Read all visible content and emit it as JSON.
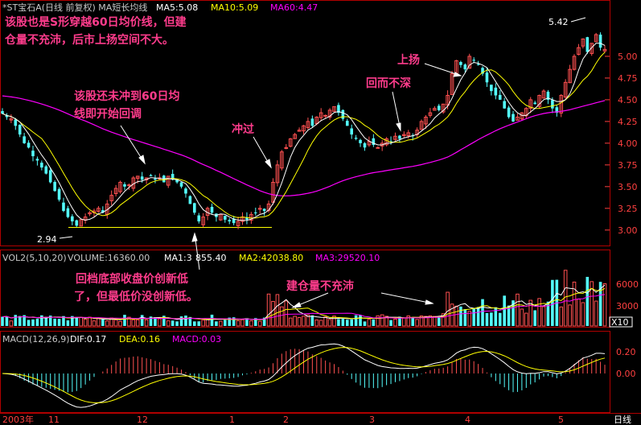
{
  "header": {
    "title": "*ST宝石A(日线 前复权) MA短长均线",
    "ma5": "MA5:5.08",
    "ma10": "MA10:5.09",
    "ma60": "MA60:4.47"
  },
  "annotations": {
    "top_left_1": "该股也是S形穿越60日均价线，但建",
    "top_left_2": "仓量不充沛，后市上扬空间不大。",
    "mid_1": "该股还未冲到60日均",
    "mid_2": "线即开始回调",
    "chongguo": "冲过",
    "huiliang": "回而不深",
    "shangyang": "上扬",
    "low_1": "回档底部收盘价创新低",
    "low_2": "了，但最低价没创新低。",
    "jiancang": "建仓量不充沛"
  },
  "price_labels": {
    "high": "5.42",
    "low": "2.94"
  },
  "volume_header": {
    "vol": "VOL2(5,10,20)",
    "volume": "VOLUME:16360.00",
    "ma1": "MA1:3",
    "ma1b": "855.40",
    "ma2": "MA2:42038.80",
    "ma3": "MA3:29520.10"
  },
  "volume_axis": [
    "6000",
    "3000"
  ],
  "volume_unit": "X10",
  "macd_header": {
    "macd": "MACD(12,26,9)",
    "dif": "DIF:0.17",
    "dea": "DEA:0.16",
    "macd_val": "MACD:0.03"
  },
  "macd_axis": [
    "0.20",
    "0.00"
  ],
  "time_axis": [
    "2003年",
    "11",
    "12",
    "1",
    "2",
    "3",
    "4",
    "5"
  ],
  "time_unit": "日线",
  "colors": {
    "up": "#ff5050",
    "down": "#54fcfc",
    "ma5": "#ffffff",
    "ma10": "#ffff00",
    "ma60": "#ff00ff",
    "note": "#ff3c8c"
  },
  "chart_data": {
    "type": "candlestick",
    "price_axis": {
      "ticks": [
        3.0,
        3.25,
        3.5,
        3.75,
        4.0,
        4.25,
        4.5,
        4.75,
        5.0
      ],
      "range": [
        2.85,
        5.5
      ]
    },
    "close_series": [
      4.34,
      4.3,
      4.28,
      4.2,
      4.1,
      4.0,
      3.95,
      3.85,
      3.8,
      3.72,
      3.65,
      3.55,
      3.45,
      3.35,
      3.22,
      3.15,
      3.1,
      3.05,
      3.12,
      3.15,
      3.2,
      3.22,
      3.25,
      3.2,
      3.3,
      3.4,
      3.48,
      3.55,
      3.5,
      3.52,
      3.6,
      3.62,
      3.58,
      3.6,
      3.62,
      3.58,
      3.6,
      3.55,
      3.62,
      3.58,
      3.55,
      3.5,
      3.42,
      3.3,
      3.2,
      3.1,
      3.15,
      3.25,
      3.2,
      3.15,
      3.18,
      3.12,
      3.1,
      3.08,
      3.1,
      3.15,
      3.12,
      3.18,
      3.2,
      3.25,
      3.22,
      3.3,
      3.55,
      3.75,
      3.9,
      3.95,
      4.05,
      4.1,
      4.15,
      4.2,
      4.25,
      4.2,
      4.3,
      4.35,
      4.32,
      4.38,
      4.42,
      4.35,
      4.28,
      4.2,
      4.1,
      4.05,
      4.0,
      3.95,
      4.02,
      3.98,
      3.95,
      4.0,
      4.05,
      4.02,
      4.08,
      4.05,
      4.1,
      4.12,
      4.08,
      4.15,
      4.25,
      4.3,
      4.35,
      4.4,
      4.38,
      4.45,
      4.55,
      4.8,
      4.95,
      4.9,
      4.85,
      5.0,
      4.95,
      4.9,
      4.8,
      4.7,
      4.6,
      4.55,
      4.5,
      4.4,
      4.3,
      4.25,
      4.3,
      4.35,
      4.4,
      4.5,
      4.45,
      4.55,
      4.6,
      4.5,
      4.4,
      4.35,
      4.55,
      4.7,
      4.85,
      5.0,
      5.1,
      5.2,
      5.05,
      5.15,
      5.25,
      5.1,
      5.08
    ]
  }
}
